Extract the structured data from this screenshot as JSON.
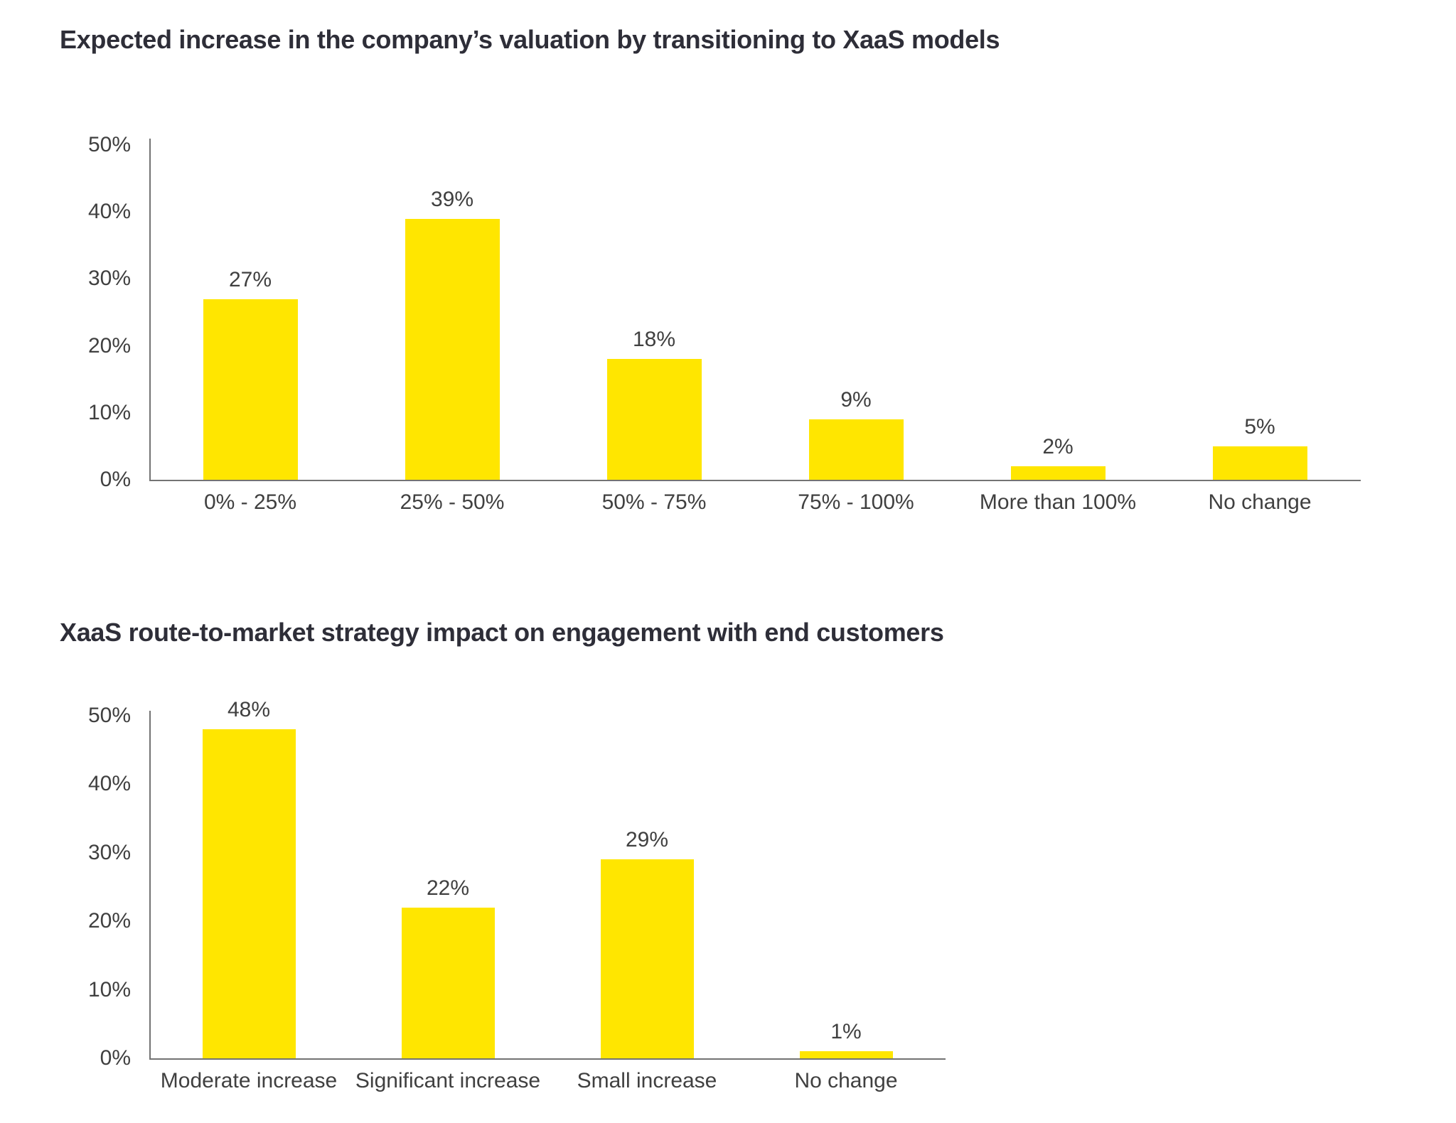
{
  "colors": {
    "background": "#FFFFFF",
    "title_text": "#2E2E38",
    "label_text": "#404040",
    "axis_line": "#737373",
    "bar_fill": "#FFE600"
  },
  "chart_data": [
    {
      "type": "bar",
      "title": "Expected increase in the company’s valuation by transitioning to XaaS models",
      "categories": [
        "0% - 25%",
        "25% - 50%",
        "50% - 75%",
        "75% - 100%",
        "More than 100%",
        "No change"
      ],
      "values": [
        27,
        39,
        18,
        9,
        2,
        5
      ],
      "value_labels": [
        "27%",
        "39%",
        "18%",
        "9%",
        "2%",
        "5%"
      ],
      "xlabel": "",
      "ylabel": "",
      "ylim": [
        0,
        50
      ],
      "ytick_labels": [
        "0%",
        "10%",
        "20%",
        "30%",
        "40%",
        "50%"
      ],
      "grid": false,
      "legend": "none",
      "bar_color": "#FFE600"
    },
    {
      "type": "bar",
      "title": "XaaS route-to-market strategy impact on engagement with end customers",
      "categories": [
        "Moderate increase",
        "Significant increase",
        "Small increase",
        "No change"
      ],
      "values": [
        48,
        22,
        29,
        1
      ],
      "value_labels": [
        "48%",
        "22%",
        "29%",
        "1%"
      ],
      "xlabel": "",
      "ylabel": "",
      "ylim": [
        0,
        50
      ],
      "ytick_labels": [
        "0%",
        "10%",
        "20%",
        "30%",
        "40%",
        "50%"
      ],
      "grid": false,
      "legend": "none",
      "bar_color": "#FFE600"
    }
  ]
}
